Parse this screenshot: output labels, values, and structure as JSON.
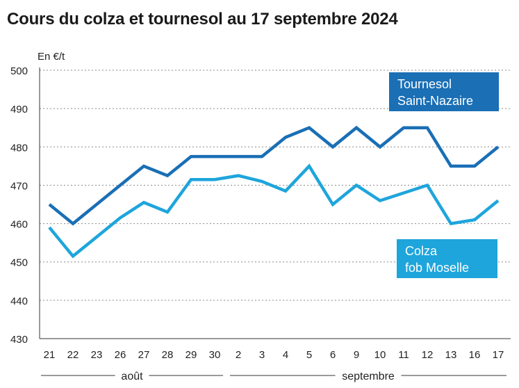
{
  "chart_data": {
    "type": "line",
    "title": "Cours du colza et tournesol au 17 septembre 2024",
    "ylabel": "En €/t",
    "ylim": [
      430,
      500
    ],
    "yticks": [
      430,
      440,
      450,
      460,
      470,
      480,
      490,
      500
    ],
    "grid": true,
    "categories": [
      "21",
      "22",
      "23",
      "26",
      "27",
      "28",
      "29",
      "30",
      "2",
      "3",
      "4",
      "5",
      "6",
      "9",
      "10",
      "11",
      "12",
      "13",
      "16",
      "17"
    ],
    "month_labels": [
      "août",
      "septembre"
    ],
    "series": [
      {
        "name_lines": [
          "Tournesol",
          "Saint-Nazaire"
        ],
        "color": "#1a6fb5",
        "values": [
          465,
          460,
          465,
          470,
          475,
          472.5,
          477.5,
          477.5,
          477.5,
          477.5,
          482.5,
          485,
          480,
          485,
          480,
          485,
          485,
          475,
          475,
          480
        ]
      },
      {
        "name_lines": [
          "Colza",
          "fob Moselle"
        ],
        "color": "#1ea5dc",
        "values": [
          459,
          451.5,
          456.5,
          461.5,
          465.5,
          463,
          471.5,
          471.5,
          472.5,
          471,
          468.5,
          475,
          465,
          470,
          466,
          468,
          470,
          460,
          461,
          466
        ]
      }
    ]
  }
}
